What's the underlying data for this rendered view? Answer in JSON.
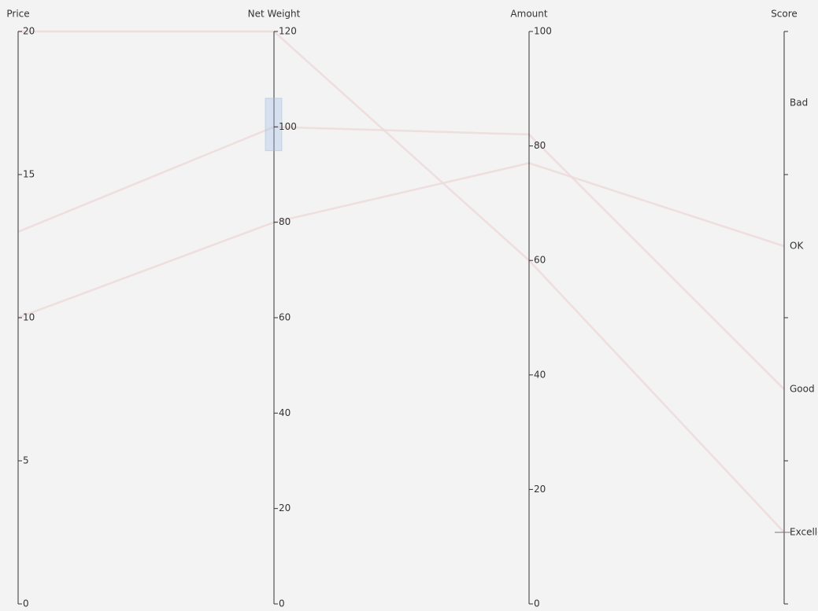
{
  "chart_data": {
    "type": "parallel",
    "axes": [
      {
        "name": "Price",
        "min": 0,
        "max": 20,
        "ticks": [
          0,
          5,
          10,
          15,
          20
        ]
      },
      {
        "name": "Net Weight",
        "min": 0,
        "max": 120,
        "ticks": [
          0,
          20,
          40,
          60,
          80,
          100,
          120
        ],
        "brush": [
          95,
          106
        ]
      },
      {
        "name": "Amount",
        "min": 0,
        "max": 100,
        "ticks": [
          0,
          20,
          40,
          60,
          80,
          100
        ]
      },
      {
        "name": "Score",
        "categories": [
          "Excellent",
          "Good",
          "OK",
          "Bad"
        ]
      }
    ],
    "color": "#ecd8d8",
    "series": [
      {
        "values": [
          20,
          120,
          60,
          "Excellent"
        ]
      },
      {
        "values": [
          13,
          100,
          82,
          "Good"
        ]
      },
      {
        "values": [
          10,
          80,
          77,
          "OK"
        ]
      }
    ]
  }
}
